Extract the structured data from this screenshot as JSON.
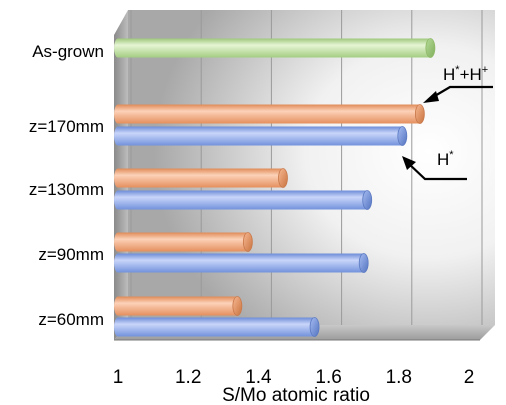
{
  "chart_data": {
    "type": "bar",
    "orientation": "horizontal",
    "title": "",
    "xlabel": "S/Mo atomic ratio",
    "ylabel": "",
    "xlim": [
      1,
      2
    ],
    "x_ticks": [
      "1",
      "1.2",
      "1.4",
      "1.6",
      "1.8",
      "2"
    ],
    "x_tick_values": [
      1,
      1.2,
      1.4,
      1.6,
      1.8,
      2
    ],
    "grid": "vertical",
    "categories": [
      "As-grown",
      "z=170mm",
      "z=130mm",
      "z=90mm",
      "z=60mm"
    ],
    "series": [
      {
        "key": "green",
        "values": [
          1.89,
          null,
          null,
          null,
          null
        ],
        "color": "#c6e3a8",
        "edge": "#8fba68"
      },
      {
        "key": "orange",
        "values": [
          null,
          1.86,
          1.47,
          1.37,
          1.34
        ],
        "color": "#f4a77b",
        "edge": "#c97a4c"
      },
      {
        "key": "blue",
        "values": [
          null,
          1.81,
          1.71,
          1.7,
          1.56
        ],
        "color": "#8ea9ec",
        "edge": "#5d7bc2"
      }
    ],
    "annotations": [
      {
        "key": "orange",
        "base": "H",
        "sup1": "*",
        "mid": "+H",
        "sup2": "+"
      },
      {
        "key": "blue",
        "base": "H",
        "sup1": "*"
      }
    ]
  }
}
